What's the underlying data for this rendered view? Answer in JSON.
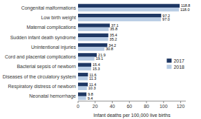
{
  "chart_data": {
    "type": "bar",
    "orientation": "horizontal",
    "categories": [
      "Neonatal hemorrhage",
      "Respiratory distress of newborn",
      "Diseases of the circulatory system",
      "Bacterial sepsis of newborn",
      "Cord and placental complications",
      "Unintentional injuries",
      "Sudden infant death syndrome",
      "Maternal complications",
      "Low birth weight",
      "Congenital malformations"
    ],
    "series": [
      {
        "name": "2017",
        "color": "#1f3864",
        "values": [
          9.8,
          11.4,
          11.6,
          15.4,
          21.9,
          34.2,
          35.4,
          37.1,
          97.2,
          118.8
        ],
        "value_labels": [
          "9.8",
          "11.4",
          "11.6",
          "15.4",
          "21.9",
          "34.2",
          "35.4",
          "37.1",
          "97.2",
          "118.8"
        ]
      },
      {
        "name": "2018",
        "color": "#b8cce4",
        "values": [
          9.4,
          10.3,
          11.3,
          15.3,
          19.1,
          30.8,
          35.2,
          35.8,
          97.0,
          118.0
        ],
        "value_labels": [
          "9.4",
          "10.3",
          "11.3",
          "15.3",
          "19.1",
          "30.8",
          "35.2",
          "35.8",
          "97.0",
          "118.0"
        ]
      }
    ],
    "xlabel": "Infant deaths per 100,000 live births",
    "xlim": [
      0,
      126
    ],
    "xticks": [
      0,
      20,
      40,
      60,
      80,
      100,
      120
    ],
    "data_labels": true,
    "legend": "right",
    "grid": false
  }
}
